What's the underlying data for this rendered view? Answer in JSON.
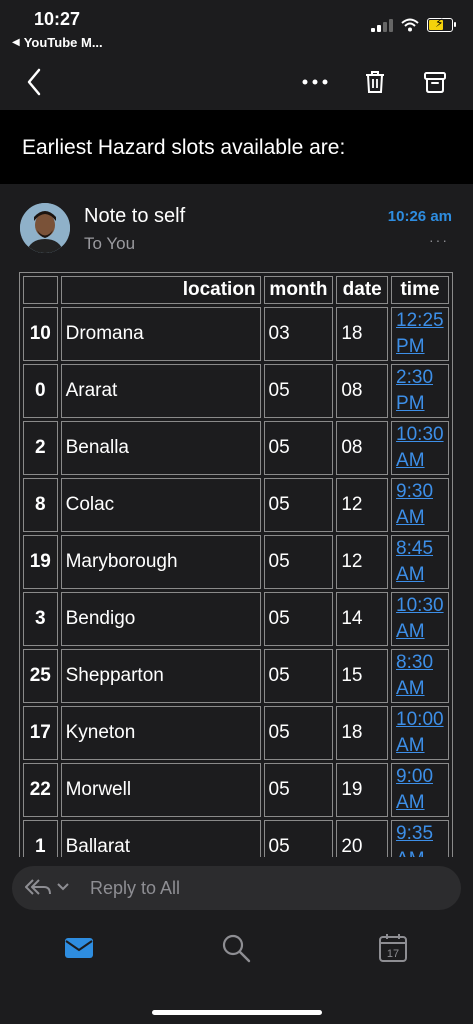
{
  "status_bar": {
    "time": "10:27",
    "back_app": "YouTube M..."
  },
  "toolbar": {
    "more": "more-options",
    "delete": "trash",
    "archive": "archive"
  },
  "email": {
    "subject": "Earliest Hazard slots available are:",
    "sender": "Note to self",
    "recipient": "To You",
    "timestamp": "10:26 am",
    "more": "···"
  },
  "table": {
    "headers": [
      "",
      "location",
      "month",
      "date",
      "time"
    ],
    "rows": [
      [
        "10",
        "Dromana",
        "03",
        "18",
        "12:25",
        "PM"
      ],
      [
        "0",
        "Ararat",
        "05",
        "08",
        "2:30",
        "PM"
      ],
      [
        "2",
        "Benalla",
        "05",
        "08",
        "10:30",
        "AM"
      ],
      [
        "8",
        "Colac",
        "05",
        "12",
        "9:30",
        "AM"
      ],
      [
        "19",
        "Maryborough",
        "05",
        "12",
        "8:45",
        "AM"
      ],
      [
        "3",
        "Bendigo",
        "05",
        "14",
        "10:30",
        "AM"
      ],
      [
        "25",
        "Shepparton",
        "05",
        "15",
        "8:30",
        "AM"
      ],
      [
        "17",
        "Kyneton",
        "05",
        "18",
        "10:00",
        "AM"
      ],
      [
        "22",
        "Morwell",
        "05",
        "19",
        "9:00",
        "AM"
      ],
      [
        "1",
        "Ballarat",
        "05",
        "20",
        "9:35",
        "AM"
      ]
    ]
  },
  "reply": {
    "label": "Reply to All"
  },
  "tabbar": {
    "calendar_day": "17"
  },
  "colors": {
    "accent": "#2e8de0",
    "link": "#3d8fe8",
    "background": "#1c1c1e"
  }
}
